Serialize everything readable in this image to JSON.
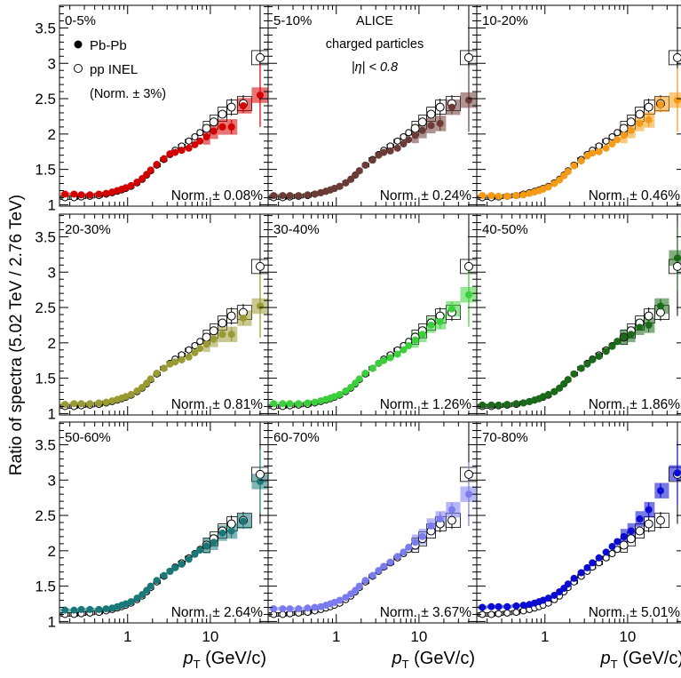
{
  "chart_data": {
    "type": "scatter",
    "ylabel": "Ratio of spectra (5.02 TeV / 2.76 TeV)",
    "xlabel_main": "p",
    "xlabel_sub": "T",
    "xlabel_unit": " (GeV/c)",
    "x_scale": "log",
    "xlim": [
      0.15,
      50
    ],
    "ylim": [
      0.98,
      3.82
    ],
    "x_ticks": [
      {
        "v": 1,
        "label": "1"
      },
      {
        "v": 10,
        "label": "10"
      }
    ],
    "y_ticks": [
      {
        "v": 1,
        "label": "1"
      },
      {
        "v": 1.5,
        "label": "1.5"
      },
      {
        "v": 2,
        "label": "2"
      },
      {
        "v": 2.5,
        "label": "2.5"
      },
      {
        "v": 3,
        "label": "3"
      },
      {
        "v": 3.5,
        "label": "3.5"
      }
    ],
    "legend": {
      "pbpb": "Pb-Pb",
      "pp": "pp INEL",
      "pp_norm": "(Norm. ± 3%)"
    },
    "annotation": [
      "ALICE",
      "charged particles",
      "|η| < 0.8"
    ],
    "pp_reference": {
      "name": "pp INEL",
      "x": [
        0.175,
        0.225,
        0.275,
        0.35,
        0.45,
        0.55,
        0.65,
        0.75,
        0.85,
        0.95,
        1.1,
        1.3,
        1.5,
        1.7,
        1.9,
        2.25,
        2.75,
        3.25,
        3.75,
        4.5,
        5.5,
        6.5,
        7.5,
        9,
        11,
        14,
        18,
        25,
        40
      ],
      "y": [
        1.1,
        1.1,
        1.11,
        1.12,
        1.13,
        1.15,
        1.17,
        1.19,
        1.21,
        1.23,
        1.26,
        1.31,
        1.36,
        1.42,
        1.48,
        1.56,
        1.64,
        1.71,
        1.77,
        1.83,
        1.9,
        1.96,
        2.02,
        2.08,
        2.17,
        2.28,
        2.38,
        2.43,
        3.08
      ]
    },
    "panels": [
      {
        "label": "0-5%",
        "norm": "Norm. ± 0.08%",
        "color": "#d40000",
        "x": [
          0.175,
          0.225,
          0.275,
          0.35,
          0.45,
          0.55,
          0.65,
          0.75,
          0.85,
          0.95,
          1.1,
          1.3,
          1.5,
          1.7,
          1.9,
          2.25,
          2.75,
          3.25,
          3.75,
          4.5,
          5.5,
          6.5,
          7.5,
          9,
          11,
          14,
          18,
          25,
          40
        ],
        "y": [
          1.15,
          1.15,
          1.14,
          1.14,
          1.15,
          1.16,
          1.18,
          1.2,
          1.22,
          1.24,
          1.27,
          1.32,
          1.37,
          1.43,
          1.49,
          1.57,
          1.65,
          1.72,
          1.74,
          1.77,
          1.8,
          1.85,
          1.9,
          1.96,
          2.04,
          2.1,
          2.1,
          2.4,
          2.55
        ]
      },
      {
        "label": "5-10%",
        "norm": "Norm. ± 0.24%",
        "color": "#6b3b36",
        "x": [
          0.175,
          0.225,
          0.275,
          0.35,
          0.45,
          0.55,
          0.65,
          0.75,
          0.85,
          0.95,
          1.1,
          1.3,
          1.5,
          1.7,
          1.9,
          2.25,
          2.75,
          3.25,
          3.75,
          4.5,
          5.5,
          6.5,
          7.5,
          9,
          11,
          14,
          18,
          25,
          40
        ],
        "y": [
          1.13,
          1.13,
          1.13,
          1.13,
          1.14,
          1.15,
          1.17,
          1.19,
          1.21,
          1.23,
          1.26,
          1.31,
          1.36,
          1.42,
          1.48,
          1.56,
          1.63,
          1.7,
          1.74,
          1.76,
          1.8,
          1.86,
          1.92,
          1.98,
          2.05,
          2.12,
          2.15,
          2.38,
          2.48
        ]
      },
      {
        "label": "10-20%",
        "norm": "Norm. ± 0.46%",
        "color": "#f59a14",
        "x": [
          0.175,
          0.225,
          0.275,
          0.35,
          0.45,
          0.55,
          0.65,
          0.75,
          0.85,
          0.95,
          1.1,
          1.3,
          1.5,
          1.7,
          1.9,
          2.25,
          2.75,
          3.25,
          3.75,
          4.5,
          5.5,
          6.5,
          7.5,
          9,
          11,
          14,
          18,
          25,
          40
        ],
        "y": [
          1.13,
          1.13,
          1.12,
          1.12,
          1.13,
          1.14,
          1.16,
          1.18,
          1.2,
          1.22,
          1.25,
          1.3,
          1.35,
          1.41,
          1.47,
          1.55,
          1.62,
          1.69,
          1.73,
          1.75,
          1.8,
          1.86,
          1.92,
          1.98,
          2.05,
          2.15,
          2.2,
          2.42,
          2.48
        ]
      },
      {
        "label": "20-30%",
        "norm": "Norm. ± 0.81%",
        "color": "#9a9a35",
        "x": [
          0.175,
          0.225,
          0.275,
          0.35,
          0.45,
          0.55,
          0.65,
          0.75,
          0.85,
          0.95,
          1.1,
          1.3,
          1.5,
          1.7,
          1.9,
          2.25,
          2.75,
          3.25,
          3.75,
          4.5,
          5.5,
          6.5,
          7.5,
          9,
          11,
          14,
          18,
          25,
          40
        ],
        "y": [
          1.13,
          1.14,
          1.14,
          1.14,
          1.15,
          1.16,
          1.18,
          1.2,
          1.22,
          1.24,
          1.27,
          1.32,
          1.37,
          1.43,
          1.49,
          1.57,
          1.64,
          1.7,
          1.73,
          1.76,
          1.8,
          1.86,
          1.92,
          1.98,
          2.05,
          2.12,
          2.12,
          2.35,
          2.52
        ]
      },
      {
        "label": "30-40%",
        "norm": "Norm. ± 1.26%",
        "color": "#3ccf3c",
        "x": [
          0.175,
          0.225,
          0.275,
          0.35,
          0.45,
          0.55,
          0.65,
          0.75,
          0.85,
          0.95,
          1.1,
          1.3,
          1.5,
          1.7,
          1.9,
          2.25,
          2.75,
          3.25,
          3.75,
          4.5,
          5.5,
          6.5,
          7.5,
          9,
          11,
          14,
          18,
          25,
          40
        ],
        "y": [
          1.14,
          1.14,
          1.14,
          1.14,
          1.15,
          1.16,
          1.18,
          1.2,
          1.22,
          1.24,
          1.27,
          1.32,
          1.37,
          1.43,
          1.49,
          1.57,
          1.64,
          1.71,
          1.75,
          1.79,
          1.84,
          1.9,
          1.96,
          2.04,
          2.12,
          2.25,
          2.3,
          2.48,
          2.68
        ]
      },
      {
        "label": "40-50%",
        "norm": "Norm. ± 1.86%",
        "color": "#1a6a1a",
        "x": [
          0.175,
          0.225,
          0.275,
          0.35,
          0.45,
          0.55,
          0.65,
          0.75,
          0.85,
          0.95,
          1.1,
          1.3,
          1.5,
          1.7,
          1.9,
          2.25,
          2.75,
          3.25,
          3.75,
          4.5,
          5.5,
          6.5,
          7.5,
          9,
          11,
          14,
          18,
          25,
          40
        ],
        "y": [
          1.12,
          1.12,
          1.12,
          1.13,
          1.14,
          1.15,
          1.17,
          1.19,
          1.21,
          1.24,
          1.27,
          1.31,
          1.36,
          1.42,
          1.48,
          1.56,
          1.64,
          1.7,
          1.76,
          1.81,
          1.88,
          1.95,
          2.02,
          2.08,
          2.12,
          2.22,
          2.25,
          2.52,
          3.2
        ]
      },
      {
        "label": "50-60%",
        "norm": "Norm. ± 2.64%",
        "color": "#1a7878",
        "x": [
          0.175,
          0.225,
          0.275,
          0.35,
          0.45,
          0.55,
          0.65,
          0.75,
          0.85,
          0.95,
          1.1,
          1.3,
          1.5,
          1.7,
          1.9,
          2.25,
          2.75,
          3.25,
          3.75,
          4.5,
          5.5,
          6.5,
          7.5,
          9,
          11,
          14,
          18,
          25,
          40
        ],
        "y": [
          1.16,
          1.16,
          1.17,
          1.17,
          1.17,
          1.18,
          1.19,
          1.21,
          1.23,
          1.25,
          1.28,
          1.33,
          1.38,
          1.44,
          1.5,
          1.58,
          1.65,
          1.71,
          1.76,
          1.81,
          1.88,
          1.95,
          2.01,
          2.07,
          2.12,
          2.25,
          2.28,
          2.42,
          2.98
        ]
      },
      {
        "label": "60-70%",
        "norm": "Norm. ± 3.67%",
        "color": "#7b7bf0",
        "x": [
          0.175,
          0.225,
          0.275,
          0.35,
          0.45,
          0.55,
          0.65,
          0.75,
          0.85,
          0.95,
          1.1,
          1.3,
          1.5,
          1.7,
          1.9,
          2.25,
          2.75,
          3.25,
          3.75,
          4.5,
          5.5,
          6.5,
          7.5,
          9,
          11,
          14,
          18,
          25,
          40
        ],
        "y": [
          1.18,
          1.18,
          1.18,
          1.18,
          1.19,
          1.2,
          1.21,
          1.23,
          1.25,
          1.27,
          1.3,
          1.34,
          1.39,
          1.44,
          1.5,
          1.58,
          1.65,
          1.72,
          1.78,
          1.84,
          1.92,
          1.98,
          2.05,
          2.12,
          2.2,
          2.35,
          2.45,
          2.58,
          2.8
        ]
      },
      {
        "label": "70-80%",
        "norm": "Norm. ± 5.01%",
        "color": "#0a0ad0",
        "x": [
          0.175,
          0.225,
          0.275,
          0.35,
          0.45,
          0.55,
          0.65,
          0.75,
          0.85,
          0.95,
          1.1,
          1.3,
          1.5,
          1.7,
          1.9,
          2.25,
          2.75,
          3.25,
          3.75,
          4.5,
          5.5,
          6.5,
          7.5,
          9,
          11,
          14,
          18,
          25,
          40
        ],
        "y": [
          1.2,
          1.21,
          1.21,
          1.21,
          1.22,
          1.23,
          1.24,
          1.26,
          1.28,
          1.3,
          1.33,
          1.37,
          1.42,
          1.47,
          1.53,
          1.61,
          1.69,
          1.76,
          1.83,
          1.9,
          1.98,
          2.06,
          2.13,
          2.2,
          2.28,
          2.45,
          2.58,
          2.85,
          3.1
        ]
      }
    ]
  }
}
